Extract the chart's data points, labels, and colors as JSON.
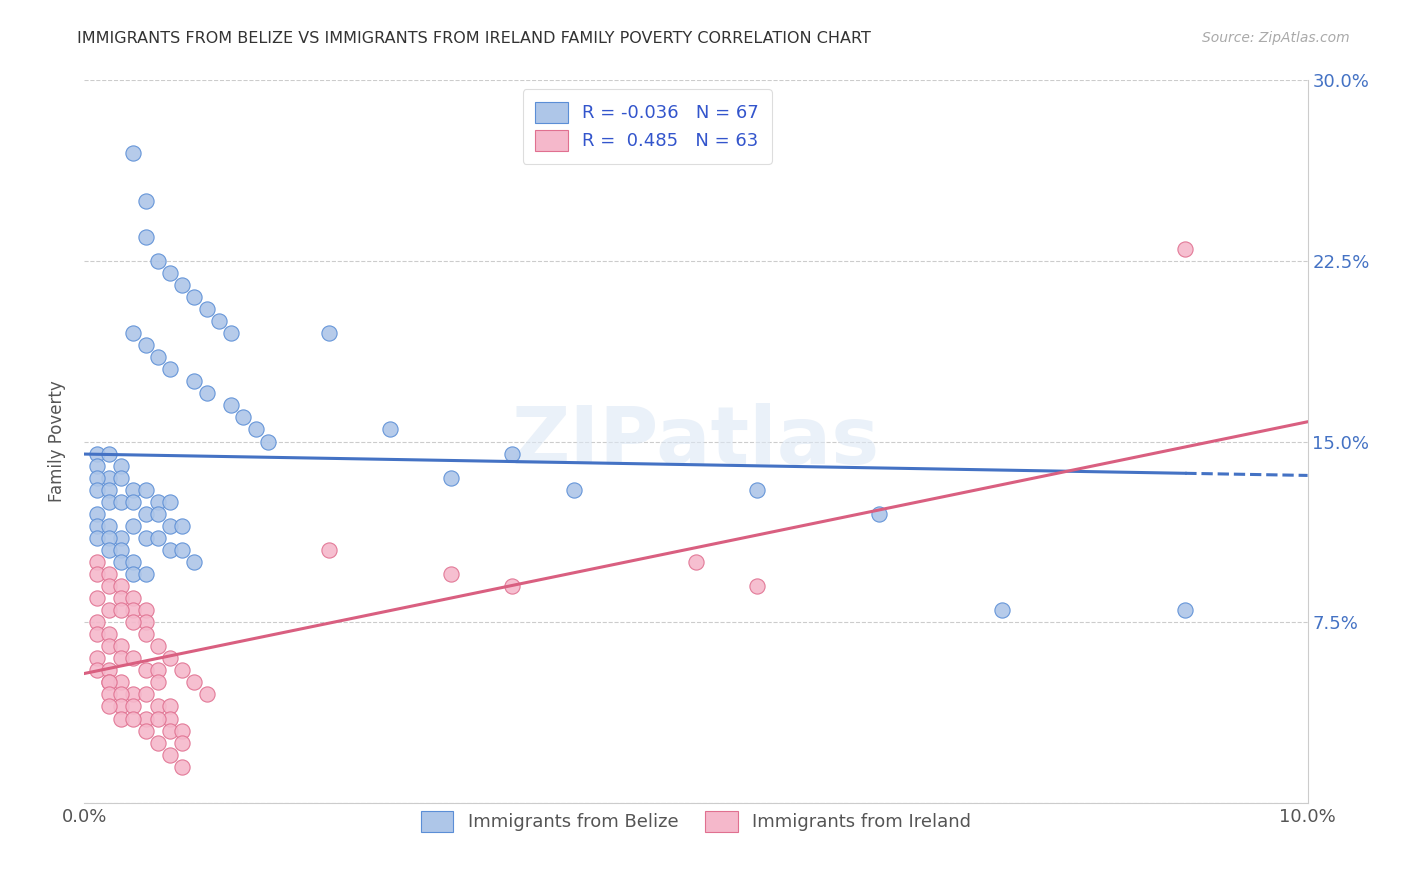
{
  "title": "IMMIGRANTS FROM BELIZE VS IMMIGRANTS FROM IRELAND FAMILY POVERTY CORRELATION CHART",
  "source": "Source: ZipAtlas.com",
  "ylabel": "Family Poverty",
  "xlim": [
    0.0,
    0.1
  ],
  "ylim": [
    0.0,
    0.3
  ],
  "xtick_vals": [
    0.0,
    0.02,
    0.04,
    0.06,
    0.08,
    0.1
  ],
  "xtick_labels": [
    "0.0%",
    "",
    "",
    "",
    "",
    "10.0%"
  ],
  "ytick_vals": [
    0.0,
    0.075,
    0.15,
    0.225,
    0.3
  ],
  "ytick_labels": [
    "",
    "7.5%",
    "15.0%",
    "22.5%",
    "30.0%"
  ],
  "legend_label_belize": "Immigrants from Belize",
  "legend_label_ireland": "Immigrants from Ireland",
  "R_belize": -0.036,
  "N_belize": 67,
  "R_ireland": 0.485,
  "N_ireland": 63,
  "color_belize_fill": "#aec6e8",
  "color_belize_edge": "#5b8ed6",
  "color_ireland_fill": "#f5b8cb",
  "color_ireland_edge": "#e07090",
  "line_color_belize": "#4472c4",
  "line_color_ireland": "#d95f80",
  "belize_x": [
    0.004,
    0.005,
    0.005,
    0.006,
    0.007,
    0.008,
    0.009,
    0.01,
    0.011,
    0.012,
    0.004,
    0.005,
    0.006,
    0.007,
    0.009,
    0.01,
    0.012,
    0.013,
    0.014,
    0.015,
    0.001,
    0.001,
    0.002,
    0.002,
    0.003,
    0.003,
    0.004,
    0.005,
    0.006,
    0.007,
    0.001,
    0.001,
    0.002,
    0.002,
    0.003,
    0.004,
    0.005,
    0.006,
    0.007,
    0.008,
    0.001,
    0.001,
    0.002,
    0.003,
    0.004,
    0.005,
    0.006,
    0.007,
    0.008,
    0.009,
    0.001,
    0.002,
    0.002,
    0.003,
    0.003,
    0.004,
    0.004,
    0.005,
    0.02,
    0.025,
    0.03,
    0.035,
    0.04,
    0.055,
    0.065,
    0.075,
    0.09
  ],
  "belize_y": [
    0.27,
    0.25,
    0.235,
    0.225,
    0.22,
    0.215,
    0.21,
    0.205,
    0.2,
    0.195,
    0.195,
    0.19,
    0.185,
    0.18,
    0.175,
    0.17,
    0.165,
    0.16,
    0.155,
    0.15,
    0.145,
    0.14,
    0.135,
    0.145,
    0.14,
    0.135,
    0.13,
    0.13,
    0.125,
    0.125,
    0.135,
    0.13,
    0.13,
    0.125,
    0.125,
    0.125,
    0.12,
    0.12,
    0.115,
    0.115,
    0.12,
    0.115,
    0.115,
    0.11,
    0.115,
    0.11,
    0.11,
    0.105,
    0.105,
    0.1,
    0.11,
    0.11,
    0.105,
    0.105,
    0.1,
    0.1,
    0.095,
    0.095,
    0.195,
    0.155,
    0.135,
    0.145,
    0.13,
    0.13,
    0.12,
    0.08,
    0.08
  ],
  "ireland_x": [
    0.001,
    0.001,
    0.002,
    0.002,
    0.003,
    0.003,
    0.004,
    0.004,
    0.005,
    0.005,
    0.001,
    0.001,
    0.002,
    0.002,
    0.003,
    0.003,
    0.004,
    0.005,
    0.006,
    0.006,
    0.001,
    0.001,
    0.002,
    0.002,
    0.003,
    0.004,
    0.005,
    0.006,
    0.007,
    0.007,
    0.002,
    0.002,
    0.003,
    0.003,
    0.004,
    0.005,
    0.006,
    0.007,
    0.008,
    0.008,
    0.001,
    0.002,
    0.003,
    0.004,
    0.005,
    0.006,
    0.007,
    0.008,
    0.009,
    0.01,
    0.002,
    0.003,
    0.004,
    0.005,
    0.006,
    0.007,
    0.008,
    0.02,
    0.03,
    0.035,
    0.05,
    0.055,
    0.09
  ],
  "ireland_y": [
    0.1,
    0.095,
    0.095,
    0.09,
    0.09,
    0.085,
    0.085,
    0.08,
    0.08,
    0.075,
    0.075,
    0.07,
    0.07,
    0.065,
    0.065,
    0.06,
    0.06,
    0.055,
    0.055,
    0.05,
    0.06,
    0.055,
    0.055,
    0.05,
    0.05,
    0.045,
    0.045,
    0.04,
    0.04,
    0.035,
    0.05,
    0.045,
    0.045,
    0.04,
    0.04,
    0.035,
    0.035,
    0.03,
    0.03,
    0.025,
    0.085,
    0.08,
    0.08,
    0.075,
    0.07,
    0.065,
    0.06,
    0.055,
    0.05,
    0.045,
    0.04,
    0.035,
    0.035,
    0.03,
    0.025,
    0.02,
    0.015,
    0.105,
    0.095,
    0.09,
    0.1,
    0.09,
    0.23
  ]
}
